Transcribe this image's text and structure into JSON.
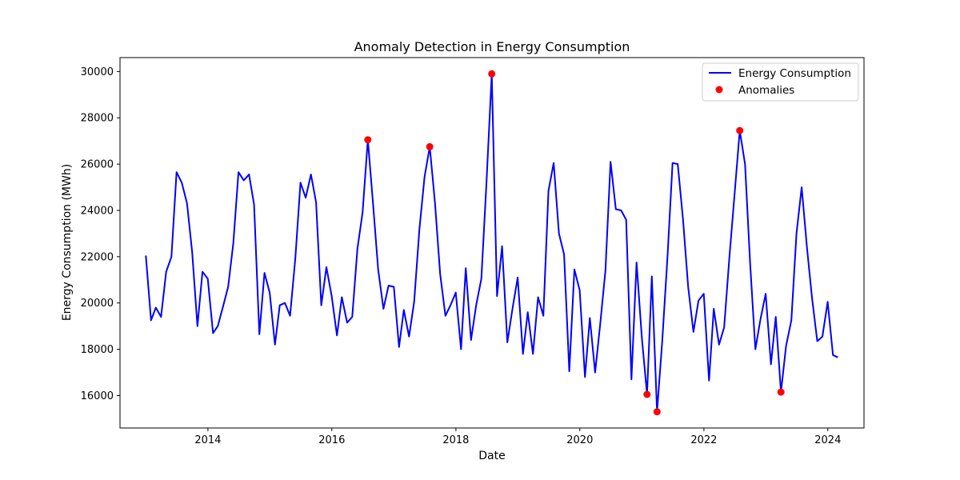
{
  "chart_data": {
    "type": "line",
    "title": "Anomaly Detection in Energy Consumption",
    "xlabel": "Date",
    "ylabel": "Energy Consumption (MWh)",
    "xlim": [
      "2012-08-01",
      "2024-08-01"
    ],
    "ylim": [
      14600,
      30600
    ],
    "x_ticks": [
      "2014",
      "2016",
      "2018",
      "2020",
      "2022",
      "2024"
    ],
    "y_ticks": [
      16000,
      18000,
      20000,
      22000,
      24000,
      26000,
      28000,
      30000
    ],
    "grid": false,
    "legend": {
      "placement": "top-right"
    },
    "series": [
      {
        "name": "Energy Consumption",
        "style": "line",
        "color": "#0000ff",
        "points": [
          [
            "2012-12-31",
            22050
          ],
          [
            "2013-01-31",
            19250
          ],
          [
            "2013-02-28",
            19800
          ],
          [
            "2013-03-31",
            19400
          ],
          [
            "2013-04-30",
            21350
          ],
          [
            "2013-05-31",
            22000
          ],
          [
            "2013-06-30",
            25650
          ],
          [
            "2013-07-31",
            25200
          ],
          [
            "2013-08-31",
            24300
          ],
          [
            "2013-09-30",
            22200
          ],
          [
            "2013-10-31",
            19000
          ],
          [
            "2013-11-30",
            21350
          ],
          [
            "2013-12-31",
            21050
          ],
          [
            "2014-01-31",
            18700
          ],
          [
            "2014-02-28",
            19000
          ],
          [
            "2014-03-31",
            19850
          ],
          [
            "2014-04-30",
            20700
          ],
          [
            "2014-05-31",
            22600
          ],
          [
            "2014-06-30",
            25650
          ],
          [
            "2014-07-31",
            25300
          ],
          [
            "2014-08-31",
            25550
          ],
          [
            "2014-09-30",
            24250
          ],
          [
            "2014-10-31",
            18650
          ],
          [
            "2014-11-30",
            21300
          ],
          [
            "2014-12-31",
            20450
          ],
          [
            "2015-01-31",
            18200
          ],
          [
            "2015-02-28",
            19900
          ],
          [
            "2015-03-31",
            20000
          ],
          [
            "2015-04-30",
            19450
          ],
          [
            "2015-05-31",
            21950
          ],
          [
            "2015-06-30",
            25200
          ],
          [
            "2015-07-31",
            24550
          ],
          [
            "2015-08-31",
            25550
          ],
          [
            "2015-09-30",
            24350
          ],
          [
            "2015-10-31",
            19900
          ],
          [
            "2015-11-30",
            21550
          ],
          [
            "2015-12-31",
            20300
          ],
          [
            "2016-01-31",
            18600
          ],
          [
            "2016-02-29",
            20250
          ],
          [
            "2016-03-31",
            19150
          ],
          [
            "2016-04-30",
            19400
          ],
          [
            "2016-05-31",
            22350
          ],
          [
            "2016-06-30",
            23900
          ],
          [
            "2016-07-31",
            27050
          ],
          [
            "2016-08-31",
            24250
          ],
          [
            "2016-09-30",
            21450
          ],
          [
            "2016-10-31",
            19750
          ],
          [
            "2016-11-30",
            20750
          ],
          [
            "2016-12-31",
            20700
          ],
          [
            "2017-01-31",
            18100
          ],
          [
            "2017-02-28",
            19700
          ],
          [
            "2017-03-31",
            18550
          ],
          [
            "2017-04-30",
            20050
          ],
          [
            "2017-05-31",
            23200
          ],
          [
            "2017-06-30",
            25450
          ],
          [
            "2017-07-31",
            26750
          ],
          [
            "2017-08-31",
            24300
          ],
          [
            "2017-09-30",
            21250
          ],
          [
            "2017-10-31",
            19450
          ],
          [
            "2017-11-30",
            19900
          ],
          [
            "2017-12-31",
            20450
          ],
          [
            "2018-01-31",
            18000
          ],
          [
            "2018-02-28",
            21500
          ],
          [
            "2018-03-31",
            18400
          ],
          [
            "2018-04-30",
            19900
          ],
          [
            "2018-05-31",
            21050
          ],
          [
            "2018-06-30",
            25200
          ],
          [
            "2018-07-31",
            29900
          ],
          [
            "2018-08-31",
            20300
          ],
          [
            "2018-09-30",
            22450
          ],
          [
            "2018-10-31",
            18300
          ],
          [
            "2018-11-30",
            19750
          ],
          [
            "2018-12-31",
            21100
          ],
          [
            "2019-01-31",
            17800
          ],
          [
            "2019-02-28",
            19600
          ],
          [
            "2019-03-31",
            17800
          ],
          [
            "2019-04-30",
            20250
          ],
          [
            "2019-05-31",
            19450
          ],
          [
            "2019-06-30",
            24850
          ],
          [
            "2019-07-31",
            26050
          ],
          [
            "2019-08-31",
            23000
          ],
          [
            "2019-09-30",
            22100
          ],
          [
            "2019-10-31",
            17050
          ],
          [
            "2019-11-30",
            21450
          ],
          [
            "2019-12-31",
            20550
          ],
          [
            "2020-01-31",
            16800
          ],
          [
            "2020-02-29",
            19350
          ],
          [
            "2020-03-31",
            17000
          ],
          [
            "2020-04-30",
            19100
          ],
          [
            "2020-05-31",
            21400
          ],
          [
            "2020-06-30",
            26100
          ],
          [
            "2020-07-31",
            24050
          ],
          [
            "2020-08-31",
            24000
          ],
          [
            "2020-09-30",
            23600
          ],
          [
            "2020-10-31",
            16700
          ],
          [
            "2020-11-30",
            21750
          ],
          [
            "2020-12-31",
            18500
          ],
          [
            "2021-01-31",
            16050
          ],
          [
            "2021-02-28",
            21150
          ],
          [
            "2021-03-31",
            15300
          ],
          [
            "2021-04-30",
            18300
          ],
          [
            "2021-05-31",
            21950
          ],
          [
            "2021-06-30",
            26050
          ],
          [
            "2021-07-31",
            26000
          ],
          [
            "2021-08-31",
            23600
          ],
          [
            "2021-09-30",
            20700
          ],
          [
            "2021-10-31",
            18750
          ],
          [
            "2021-11-30",
            20100
          ],
          [
            "2021-12-31",
            20400
          ],
          [
            "2022-01-31",
            16650
          ],
          [
            "2022-02-28",
            19750
          ],
          [
            "2022-03-31",
            18200
          ],
          [
            "2022-04-30",
            18950
          ],
          [
            "2022-05-31",
            21950
          ],
          [
            "2022-06-30",
            24650
          ],
          [
            "2022-07-31",
            27450
          ],
          [
            "2022-08-31",
            26000
          ],
          [
            "2022-09-30",
            21750
          ],
          [
            "2022-10-31",
            18000
          ],
          [
            "2022-11-30",
            19300
          ],
          [
            "2022-12-31",
            20400
          ],
          [
            "2023-01-31",
            17350
          ],
          [
            "2023-02-28",
            19400
          ],
          [
            "2023-03-31",
            16150
          ],
          [
            "2023-04-30",
            18150
          ],
          [
            "2023-05-31",
            19250
          ],
          [
            "2023-06-30",
            23000
          ],
          [
            "2023-07-31",
            25000
          ],
          [
            "2023-08-31",
            22400
          ],
          [
            "2023-09-30",
            20200
          ],
          [
            "2023-10-31",
            18350
          ],
          [
            "2023-11-30",
            18550
          ],
          [
            "2023-12-31",
            20050
          ],
          [
            "2024-01-31",
            17750
          ],
          [
            "2024-02-29",
            17650
          ]
        ]
      },
      {
        "name": "Anomalies",
        "style": "scatter",
        "color": "#ff0000",
        "points": [
          [
            "2016-07-31",
            27050
          ],
          [
            "2017-07-31",
            26750
          ],
          [
            "2018-07-31",
            29900
          ],
          [
            "2021-01-31",
            16050
          ],
          [
            "2021-03-31",
            15300
          ],
          [
            "2022-07-31",
            27450
          ],
          [
            "2023-03-31",
            16150
          ]
        ]
      }
    ]
  }
}
